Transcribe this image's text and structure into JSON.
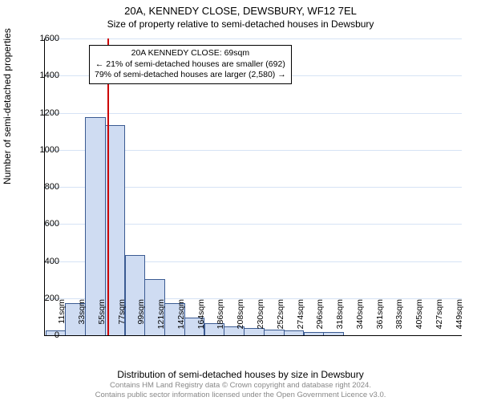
{
  "chart": {
    "type": "histogram",
    "title": "20A, KENNEDY CLOSE, DEWSBURY, WF12 7EL",
    "subtitle": "Size of property relative to semi-detached houses in Dewsbury",
    "ylabel": "Number of semi-detached properties",
    "xlabel": "Distribution of semi-detached houses by size in Dewsbury",
    "background_color": "#ffffff",
    "grid_color": "#d6e3f5",
    "bar_fill": "#cfdcf2",
    "bar_stroke": "#3b5b92",
    "ref_line_color": "#cc0000",
    "ylim": [
      0,
      1600
    ],
    "ytick_step": 200,
    "x_categories": [
      "11sqm",
      "33sqm",
      "55sqm",
      "77sqm",
      "99sqm",
      "121sqm",
      "142sqm",
      "164sqm",
      "186sqm",
      "208sqm",
      "230sqm",
      "252sqm",
      "274sqm",
      "296sqm",
      "318sqm",
      "340sqm",
      "361sqm",
      "383sqm",
      "405sqm",
      "427sqm",
      "449sqm"
    ],
    "values": [
      20,
      170,
      1170,
      1130,
      430,
      300,
      170,
      90,
      60,
      45,
      35,
      25,
      20,
      15,
      12,
      0,
      0,
      0,
      0,
      0,
      0
    ],
    "bar_width": 0.95,
    "reference_index": 2.65,
    "annotation": {
      "line1": "20A KENNEDY CLOSE: 69sqm",
      "line2": "← 21% of semi-detached houses are smaller (692)",
      "line3": "79% of semi-detached houses are larger (2,580) →"
    },
    "footer_line1": "Contains HM Land Registry data © Crown copyright and database right 2024.",
    "footer_line2": "Contains public sector information licensed under the Open Government Licence v3.0.",
    "title_fontsize": 13,
    "subtitle_fontsize": 12,
    "label_fontsize": 12,
    "tick_fontsize": 11
  }
}
